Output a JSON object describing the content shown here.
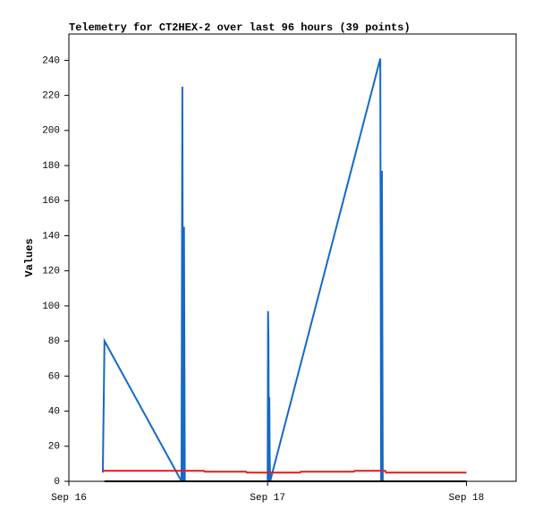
{
  "chart_data": {
    "type": "line",
    "title": "Telemetry for CT2HEX-2 over last 96 hours (39 points)",
    "y_label": "Values",
    "xlim": [
      0,
      54
    ],
    "xticks": [
      {
        "value": 0,
        "label": "Sep 16"
      },
      {
        "value": 24,
        "label": "Sep 17"
      },
      {
        "value": 48,
        "label": "Sep 18"
      }
    ],
    "ylim": [
      0,
      255
    ],
    "yticks": [
      0,
      20,
      40,
      60,
      80,
      100,
      120,
      140,
      160,
      180,
      200,
      220,
      240
    ],
    "grid": false,
    "series": [
      {
        "color": "#1569c7",
        "x": [
          4.1,
          4.3,
          13.6,
          13.7,
          13.8,
          13.9,
          14.0,
          24.0,
          24.05,
          24.1,
          24.15,
          24.2,
          24.25,
          24.3,
          37.6,
          37.7,
          37.8,
          37.9,
          48
        ],
        "values": [
          5,
          80,
          0,
          225,
          0,
          145,
          0,
          0,
          97,
          80,
          0,
          48,
          16,
          0,
          241,
          0,
          177,
          0,
          0
        ]
      },
      {
        "color": "#e31a1c",
        "x": [
          4.1,
          16.3,
          16.4,
          21.4,
          21.5,
          27.9,
          28.0,
          34.4,
          34.5,
          38.2,
          38.3,
          48
        ],
        "values": [
          6,
          6,
          5.5,
          5.5,
          5,
          5,
          5.5,
          5.5,
          6,
          6,
          5,
          5
        ]
      },
      {
        "color": "#000000",
        "x": [
          4.3,
          48
        ],
        "values": [
          0,
          0
        ]
      }
    ]
  }
}
